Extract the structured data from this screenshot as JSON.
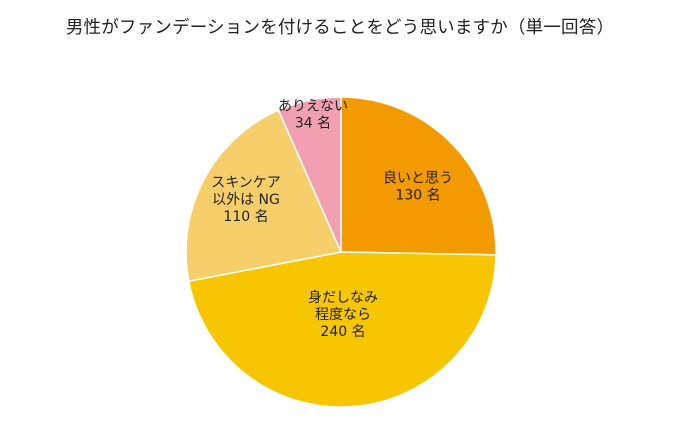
{
  "chart_data": {
    "type": "pie",
    "title": "男性がファンデーションを付けることをどう思いますか（単一回答）",
    "slices": [
      {
        "lines": [
          "良いと思う",
          "130 名"
        ],
        "value": 130,
        "color": "#f39a00"
      },
      {
        "lines": [
          "身だしなみ",
          "程度なら",
          "240 名"
        ],
        "value": 240,
        "color": "#f7c600"
      },
      {
        "lines": [
          "スキンケア",
          "以外は NG",
          "110 名"
        ],
        "value": 110,
        "color": "#f7cf6a"
      },
      {
        "lines": [
          "ありえない",
          "34 名"
        ],
        "value": 34,
        "color": "#f0a0b0"
      }
    ],
    "start": "12 o'clock",
    "direction": "clockwise",
    "legend": "none",
    "grid": false
  }
}
